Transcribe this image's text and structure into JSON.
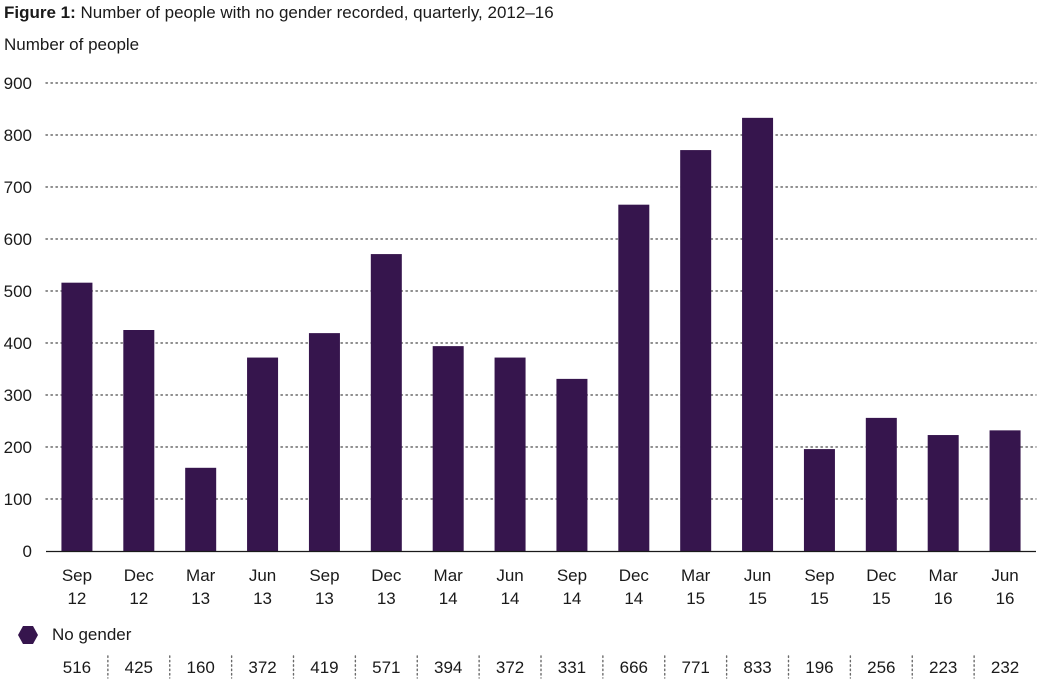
{
  "title": {
    "prefix": "Figure 1:",
    "text": "Number of people with no gender recorded, quarterly, 2012–16"
  },
  "chart_data": {
    "type": "bar",
    "title": "Figure 1: Number of people with no gender recorded, quarterly, 2012–16",
    "ylabel": "Number of people",
    "xlabel": "",
    "ylim": [
      0,
      900
    ],
    "yticks": [
      0,
      100,
      200,
      300,
      400,
      500,
      600,
      700,
      800,
      900
    ],
    "grid": "horizontal-dotted",
    "categories": [
      [
        "Sep",
        "12"
      ],
      [
        "Dec",
        "12"
      ],
      [
        "Mar",
        "13"
      ],
      [
        "Jun",
        "13"
      ],
      [
        "Sep",
        "13"
      ],
      [
        "Dec",
        "13"
      ],
      [
        "Mar",
        "14"
      ],
      [
        "Jun",
        "14"
      ],
      [
        "Sep",
        "14"
      ],
      [
        "Dec",
        "14"
      ],
      [
        "Mar",
        "15"
      ],
      [
        "Jun",
        "15"
      ],
      [
        "Sep",
        "15"
      ],
      [
        "Dec",
        "15"
      ],
      [
        "Mar",
        "16"
      ],
      [
        "Jun",
        "16"
      ]
    ],
    "series": [
      {
        "name": "No gender",
        "values": [
          516,
          425,
          160,
          372,
          419,
          571,
          394,
          372,
          331,
          666,
          771,
          833,
          196,
          256,
          223,
          232
        ]
      }
    ],
    "legend_position": "bottom-left",
    "data_table": true
  },
  "colors": {
    "bar": "#36154d",
    "grid": "#6a6a6a",
    "axis": "#1a1a1a",
    "text": "#1a1a1a"
  }
}
